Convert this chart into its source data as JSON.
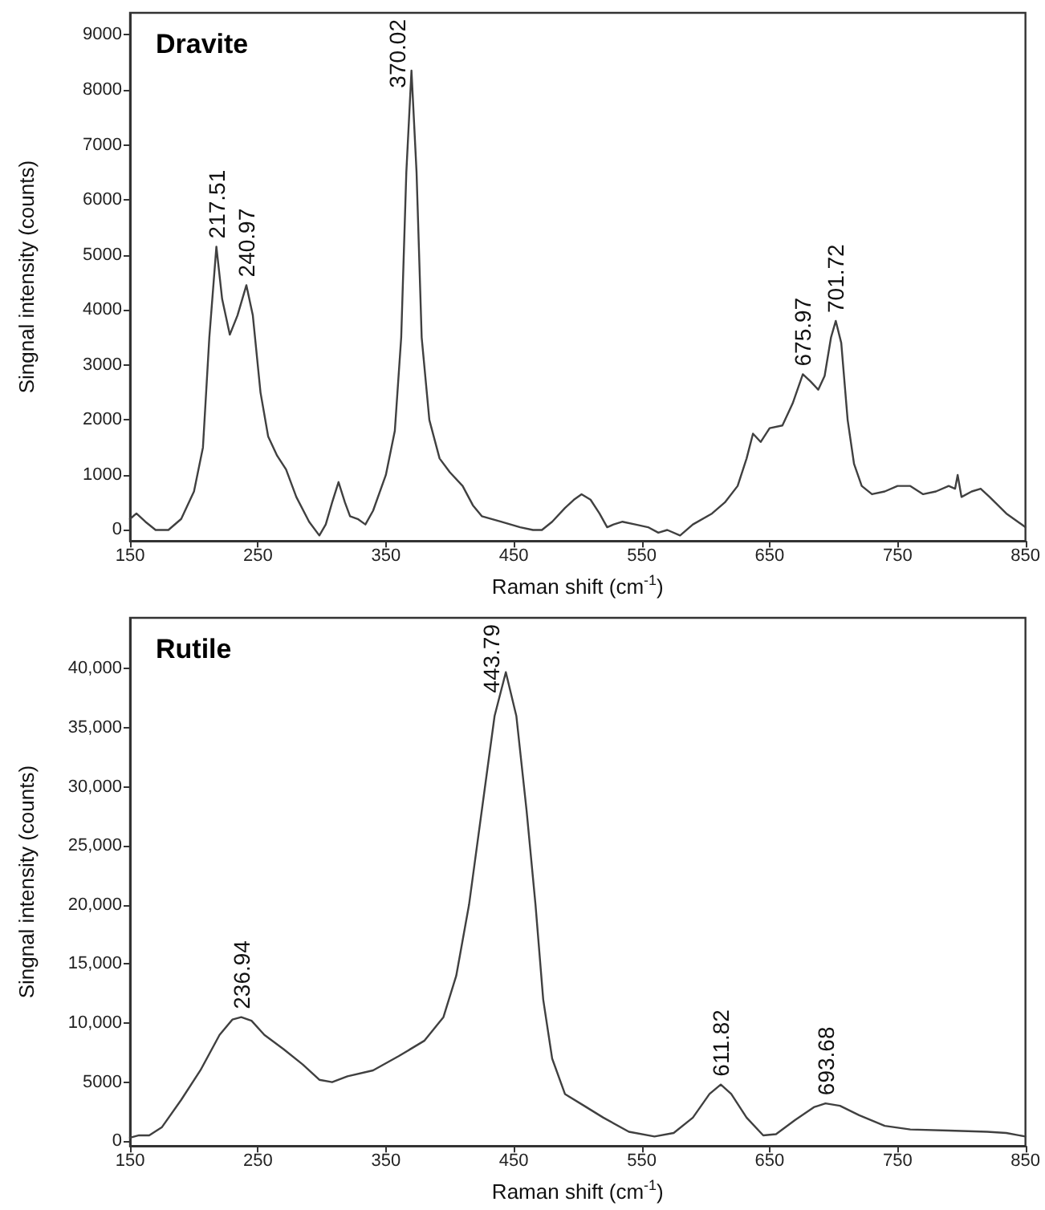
{
  "chart_data": [
    {
      "type": "line",
      "title": "Dravite",
      "xlabel": "Raman shift (cm$^{-1}$)",
      "ylabel": "Singnal intensity (counts)",
      "xlim": [
        150,
        850
      ],
      "xticks": [
        150,
        250,
        350,
        450,
        550,
        650,
        750,
        850
      ],
      "ylim": [
        -200,
        9400
      ],
      "yticks": [
        0,
        1000,
        2000,
        3000,
        4000,
        5000,
        6000,
        7000,
        8000,
        9000
      ],
      "grid": false,
      "marker": "none",
      "line_style": "solid",
      "annotations": [
        {
          "text": "217.51",
          "x": 217.51,
          "y": 5150
        },
        {
          "text": "240.97",
          "x": 240.97,
          "y": 4450
        },
        {
          "text": "370.02",
          "x": 370.02,
          "y": 8350
        },
        {
          "text": "675.97",
          "x": 675.97,
          "y": 2830
        },
        {
          "text": "701.72",
          "x": 701.72,
          "y": 3800
        }
      ],
      "series": [
        {
          "color": "#404040",
          "x": [
            150,
            155,
            162,
            170,
            180,
            190,
            200,
            207,
            212,
            217.51,
            222,
            228,
            234,
            240.97,
            246,
            252,
            258,
            265,
            272,
            280,
            290,
            298,
            303,
            308,
            313,
            318,
            322,
            328,
            334,
            340,
            350,
            357,
            362,
            366,
            370.02,
            374,
            378,
            384,
            392,
            400,
            410,
            418,
            425,
            440,
            455,
            465,
            472,
            480,
            490,
            497,
            503,
            510,
            517,
            523,
            528,
            535,
            545,
            555,
            563,
            570,
            580,
            590,
            605,
            615,
            625,
            632,
            637,
            643,
            650,
            660,
            668,
            675.97,
            682,
            688,
            693,
            698,
            701.72,
            706,
            711,
            716,
            722,
            730,
            740,
            750,
            760,
            770,
            780,
            790,
            795,
            797,
            800,
            808,
            815,
            822,
            835,
            850
          ],
          "values": [
            200,
            300,
            150,
            0,
            0,
            200,
            700,
            1500,
            3500,
            5150,
            4200,
            3550,
            3900,
            4450,
            3900,
            2500,
            1700,
            1350,
            1100,
            600,
            150,
            -100,
            100,
            500,
            870,
            500,
            250,
            200,
            100,
            350,
            1000,
            1800,
            3500,
            6500,
            8350,
            6500,
            3500,
            2000,
            1300,
            1050,
            800,
            450,
            250,
            150,
            50,
            0,
            0,
            150,
            400,
            550,
            650,
            550,
            300,
            50,
            100,
            150,
            100,
            50,
            -50,
            0,
            -100,
            100,
            300,
            500,
            800,
            1300,
            1750,
            1600,
            1850,
            1900,
            2300,
            2830,
            2700,
            2550,
            2800,
            3500,
            3800,
            3400,
            2000,
            1200,
            800,
            650,
            700,
            800,
            800,
            650,
            700,
            800,
            750,
            1000,
            600,
            700,
            750,
            600,
            300,
            50
          ]
        }
      ]
    },
    {
      "type": "line",
      "title": "Rutile",
      "xlabel": "Raman shift (cm$^{-1}$)",
      "ylabel": "Singnal intensity (counts)",
      "xlim": [
        150,
        850
      ],
      "xticks": [
        150,
        250,
        350,
        450,
        550,
        650,
        750,
        850
      ],
      "ylim": [
        -400,
        44300
      ],
      "yticks": [
        0,
        5000,
        {
          "value": 10000,
          "label": "10,000"
        },
        {
          "value": 15000,
          "label": "15,000"
        },
        {
          "value": 20000,
          "label": "20,000"
        },
        {
          "value": 25000,
          "label": "25,000"
        },
        {
          "value": 30000,
          "label": "30,000"
        },
        {
          "value": 35000,
          "label": "35,000"
        },
        {
          "value": 40000,
          "label": "40,000"
        }
      ],
      "grid": false,
      "marker": "none",
      "line_style": "solid",
      "annotations": [
        {
          "text": "236.94",
          "x": 236.94,
          "y": 10500
        },
        {
          "text": "443.79",
          "x": 443.79,
          "y": 39700
        },
        {
          "text": "611.82",
          "x": 611.82,
          "y": 4800
        },
        {
          "text": "693.68",
          "x": 693.68,
          "y": 3200
        }
      ],
      "series": [
        {
          "color": "#404040",
          "x": [
            150,
            157,
            165,
            175,
            190,
            205,
            220,
            230,
            236.94,
            245,
            255,
            270,
            285,
            298,
            308,
            320,
            340,
            360,
            380,
            395,
            405,
            415,
            425,
            435,
            443.79,
            452,
            460,
            467,
            473,
            480,
            490,
            505,
            520,
            540,
            560,
            575,
            590,
            603,
            611.82,
            620,
            632,
            645,
            655,
            670,
            685,
            693.68,
            705,
            720,
            740,
            760,
            790,
            820,
            835,
            850
          ],
          "values": [
            300,
            500,
            500,
            1200,
            3500,
            6000,
            9000,
            10300,
            10500,
            10200,
            9000,
            7800,
            6500,
            5200,
            5000,
            5500,
            6000,
            7200,
            8500,
            10500,
            14000,
            20000,
            28000,
            36000,
            39700,
            36000,
            28000,
            20000,
            12000,
            7000,
            4000,
            3000,
            2000,
            800,
            400,
            700,
            2000,
            4000,
            4800,
            4000,
            2000,
            500,
            600,
            1800,
            2900,
            3200,
            3000,
            2200,
            1300,
            1000,
            900,
            800,
            700,
            400
          ]
        }
      ]
    }
  ]
}
